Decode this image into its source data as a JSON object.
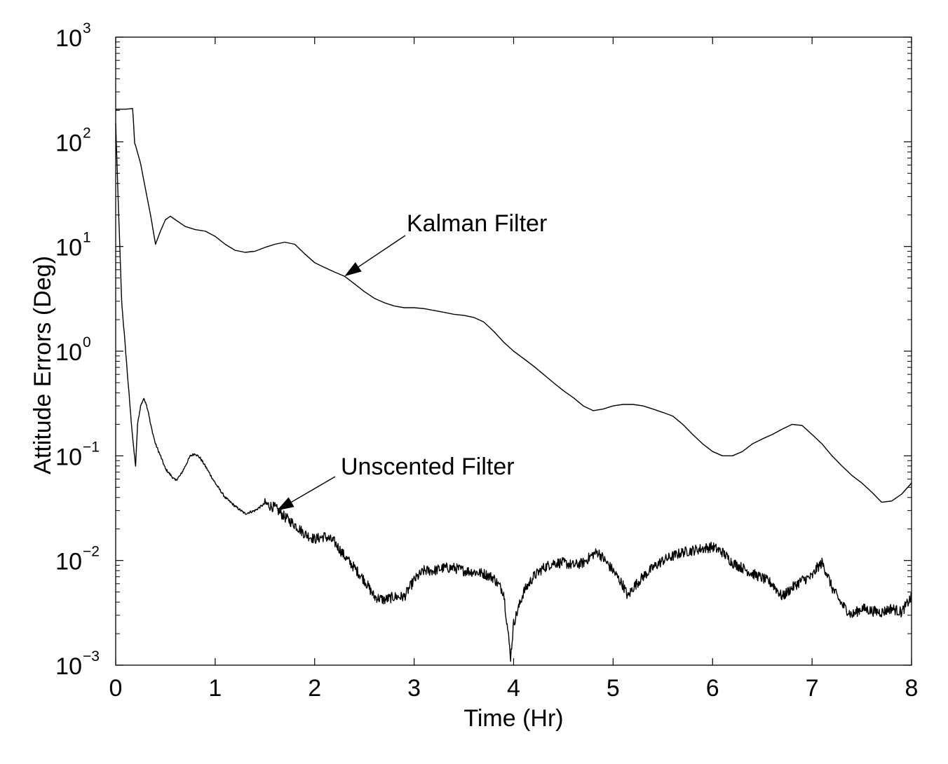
{
  "chart_data": {
    "type": "line",
    "title": "",
    "xlabel": "Time (Hr)",
    "ylabel": "Attitude Errors (Deg)",
    "xlim": [
      0,
      8
    ],
    "ylim": [
      0.001,
      1000
    ],
    "yscale": "log",
    "grid": false,
    "x_ticks": [
      {
        "value": 0,
        "label": "0"
      },
      {
        "value": 1,
        "label": "1"
      },
      {
        "value": 2,
        "label": "2"
      },
      {
        "value": 3,
        "label": "3"
      },
      {
        "value": 4,
        "label": "4"
      },
      {
        "value": 5,
        "label": "5"
      },
      {
        "value": 6,
        "label": "6"
      },
      {
        "value": 7,
        "label": "7"
      },
      {
        "value": 8,
        "label": "8"
      }
    ],
    "y_ticks": [
      {
        "value": 0.001,
        "base": "10",
        "exp": "−3"
      },
      {
        "value": 0.01,
        "base": "10",
        "exp": "−2"
      },
      {
        "value": 0.1,
        "base": "10",
        "exp": "−1"
      },
      {
        "value": 1,
        "base": "10",
        "exp": "0"
      },
      {
        "value": 10,
        "base": "10",
        "exp": "1"
      },
      {
        "value": 100,
        "base": "10",
        "exp": "2"
      },
      {
        "value": 1000,
        "base": "10",
        "exp": "3"
      }
    ],
    "series": [
      {
        "name": "Kalman Filter",
        "noise": 0,
        "x": [
          0,
          0.01,
          0.05,
          0.1,
          0.17,
          0.18,
          0.19,
          0.2,
          0.25,
          0.3,
          0.35,
          0.4,
          0.45,
          0.5,
          0.55,
          0.6,
          0.7,
          0.8,
          0.9,
          1.0,
          1.1,
          1.2,
          1.3,
          1.4,
          1.5,
          1.6,
          1.7,
          1.8,
          1.9,
          2.0,
          2.1,
          2.2,
          2.3,
          2.4,
          2.5,
          2.6,
          2.7,
          2.8,
          2.9,
          3.0,
          3.1,
          3.2,
          3.3,
          3.4,
          3.5,
          3.6,
          3.7,
          3.8,
          3.9,
          4.0,
          4.1,
          4.2,
          4.3,
          4.4,
          4.5,
          4.6,
          4.7,
          4.8,
          4.9,
          5.0,
          5.1,
          5.2,
          5.3,
          5.4,
          5.5,
          5.6,
          5.7,
          5.8,
          5.9,
          6.0,
          6.1,
          6.2,
          6.3,
          6.4,
          6.5,
          6.6,
          6.7,
          6.8,
          6.9,
          7.0,
          7.1,
          7.2,
          7.3,
          7.4,
          7.5,
          7.6,
          7.7,
          7.8,
          7.9,
          8.0
        ],
        "y": [
          200,
          205,
          205,
          205,
          208,
          150,
          97,
          92,
          62,
          35,
          20,
          10.5,
          14,
          18,
          19.5,
          18,
          15.5,
          14.5,
          14,
          12.5,
          10.5,
          9.2,
          8.8,
          9.0,
          9.8,
          10.5,
          11,
          10.5,
          8.5,
          7.0,
          6.3,
          5.7,
          5.2,
          4.4,
          3.7,
          3.2,
          2.9,
          2.7,
          2.6,
          2.6,
          2.55,
          2.45,
          2.35,
          2.25,
          2.2,
          2.1,
          1.9,
          1.55,
          1.22,
          1.0,
          0.85,
          0.72,
          0.6,
          0.5,
          0.42,
          0.36,
          0.3,
          0.27,
          0.28,
          0.3,
          0.31,
          0.31,
          0.3,
          0.28,
          0.26,
          0.24,
          0.2,
          0.16,
          0.13,
          0.11,
          0.1,
          0.1,
          0.11,
          0.13,
          0.145,
          0.16,
          0.18,
          0.2,
          0.195,
          0.16,
          0.13,
          0.1,
          0.08,
          0.065,
          0.055,
          0.045,
          0.036,
          0.037,
          0.043,
          0.055
        ]
      },
      {
        "name": "Unscented Filter",
        "noise": 1,
        "x": [
          0,
          0.03,
          0.06,
          0.1,
          0.15,
          0.18,
          0.2,
          0.22,
          0.25,
          0.28,
          0.3,
          0.33,
          0.35,
          0.4,
          0.45,
          0.5,
          0.55,
          0.6,
          0.65,
          0.7,
          0.75,
          0.8,
          0.85,
          0.9,
          1.0,
          1.1,
          1.2,
          1.3,
          1.4,
          1.5,
          1.6,
          1.7,
          1.8,
          1.9,
          2.0,
          2.1,
          2.2,
          2.3,
          2.4,
          2.5,
          2.6,
          2.7,
          2.8,
          2.9,
          3.0,
          3.1,
          3.2,
          3.3,
          3.4,
          3.5,
          3.6,
          3.7,
          3.8,
          3.9,
          3.95,
          3.97,
          4.0,
          4.1,
          4.2,
          4.3,
          4.4,
          4.5,
          4.6,
          4.7,
          4.8,
          4.85,
          4.9,
          5.0,
          5.1,
          5.15,
          5.2,
          5.3,
          5.4,
          5.5,
          5.6,
          5.7,
          5.8,
          5.9,
          6.0,
          6.1,
          6.2,
          6.3,
          6.4,
          6.5,
          6.6,
          6.7,
          6.8,
          6.9,
          7.0,
          7.05,
          7.1,
          7.15,
          7.2,
          7.3,
          7.4,
          7.5,
          7.6,
          7.7,
          7.8,
          7.9,
          8.0
        ],
        "y": [
          150,
          20,
          3.0,
          1.0,
          0.25,
          0.12,
          0.08,
          0.2,
          0.3,
          0.35,
          0.33,
          0.26,
          0.2,
          0.13,
          0.1,
          0.075,
          0.066,
          0.058,
          0.065,
          0.08,
          0.1,
          0.105,
          0.095,
          0.08,
          0.055,
          0.04,
          0.033,
          0.028,
          0.03,
          0.035,
          0.032,
          0.026,
          0.022,
          0.018,
          0.016,
          0.017,
          0.015,
          0.011,
          0.0085,
          0.0065,
          0.0045,
          0.0042,
          0.0045,
          0.0045,
          0.0065,
          0.008,
          0.008,
          0.0085,
          0.0085,
          0.008,
          0.0078,
          0.0075,
          0.0068,
          0.005,
          0.0018,
          0.0012,
          0.0025,
          0.005,
          0.007,
          0.0085,
          0.0095,
          0.0095,
          0.009,
          0.0095,
          0.0115,
          0.012,
          0.0105,
          0.008,
          0.0058,
          0.0045,
          0.0055,
          0.007,
          0.0085,
          0.01,
          0.011,
          0.012,
          0.0125,
          0.013,
          0.0135,
          0.012,
          0.0095,
          0.0085,
          0.0075,
          0.0068,
          0.006,
          0.0045,
          0.0055,
          0.0065,
          0.007,
          0.0085,
          0.0095,
          0.0075,
          0.0055,
          0.0038,
          0.003,
          0.0035,
          0.0033,
          0.0032,
          0.0035,
          0.0032,
          0.0045
        ]
      }
    ],
    "annotations": [
      {
        "text": "Kalman Filter",
        "target": {
          "x": 2.3,
          "y": 5.2
        }
      },
      {
        "text": "Unscented Filter",
        "target": {
          "x": 1.62,
          "y": 0.03
        }
      }
    ]
  }
}
